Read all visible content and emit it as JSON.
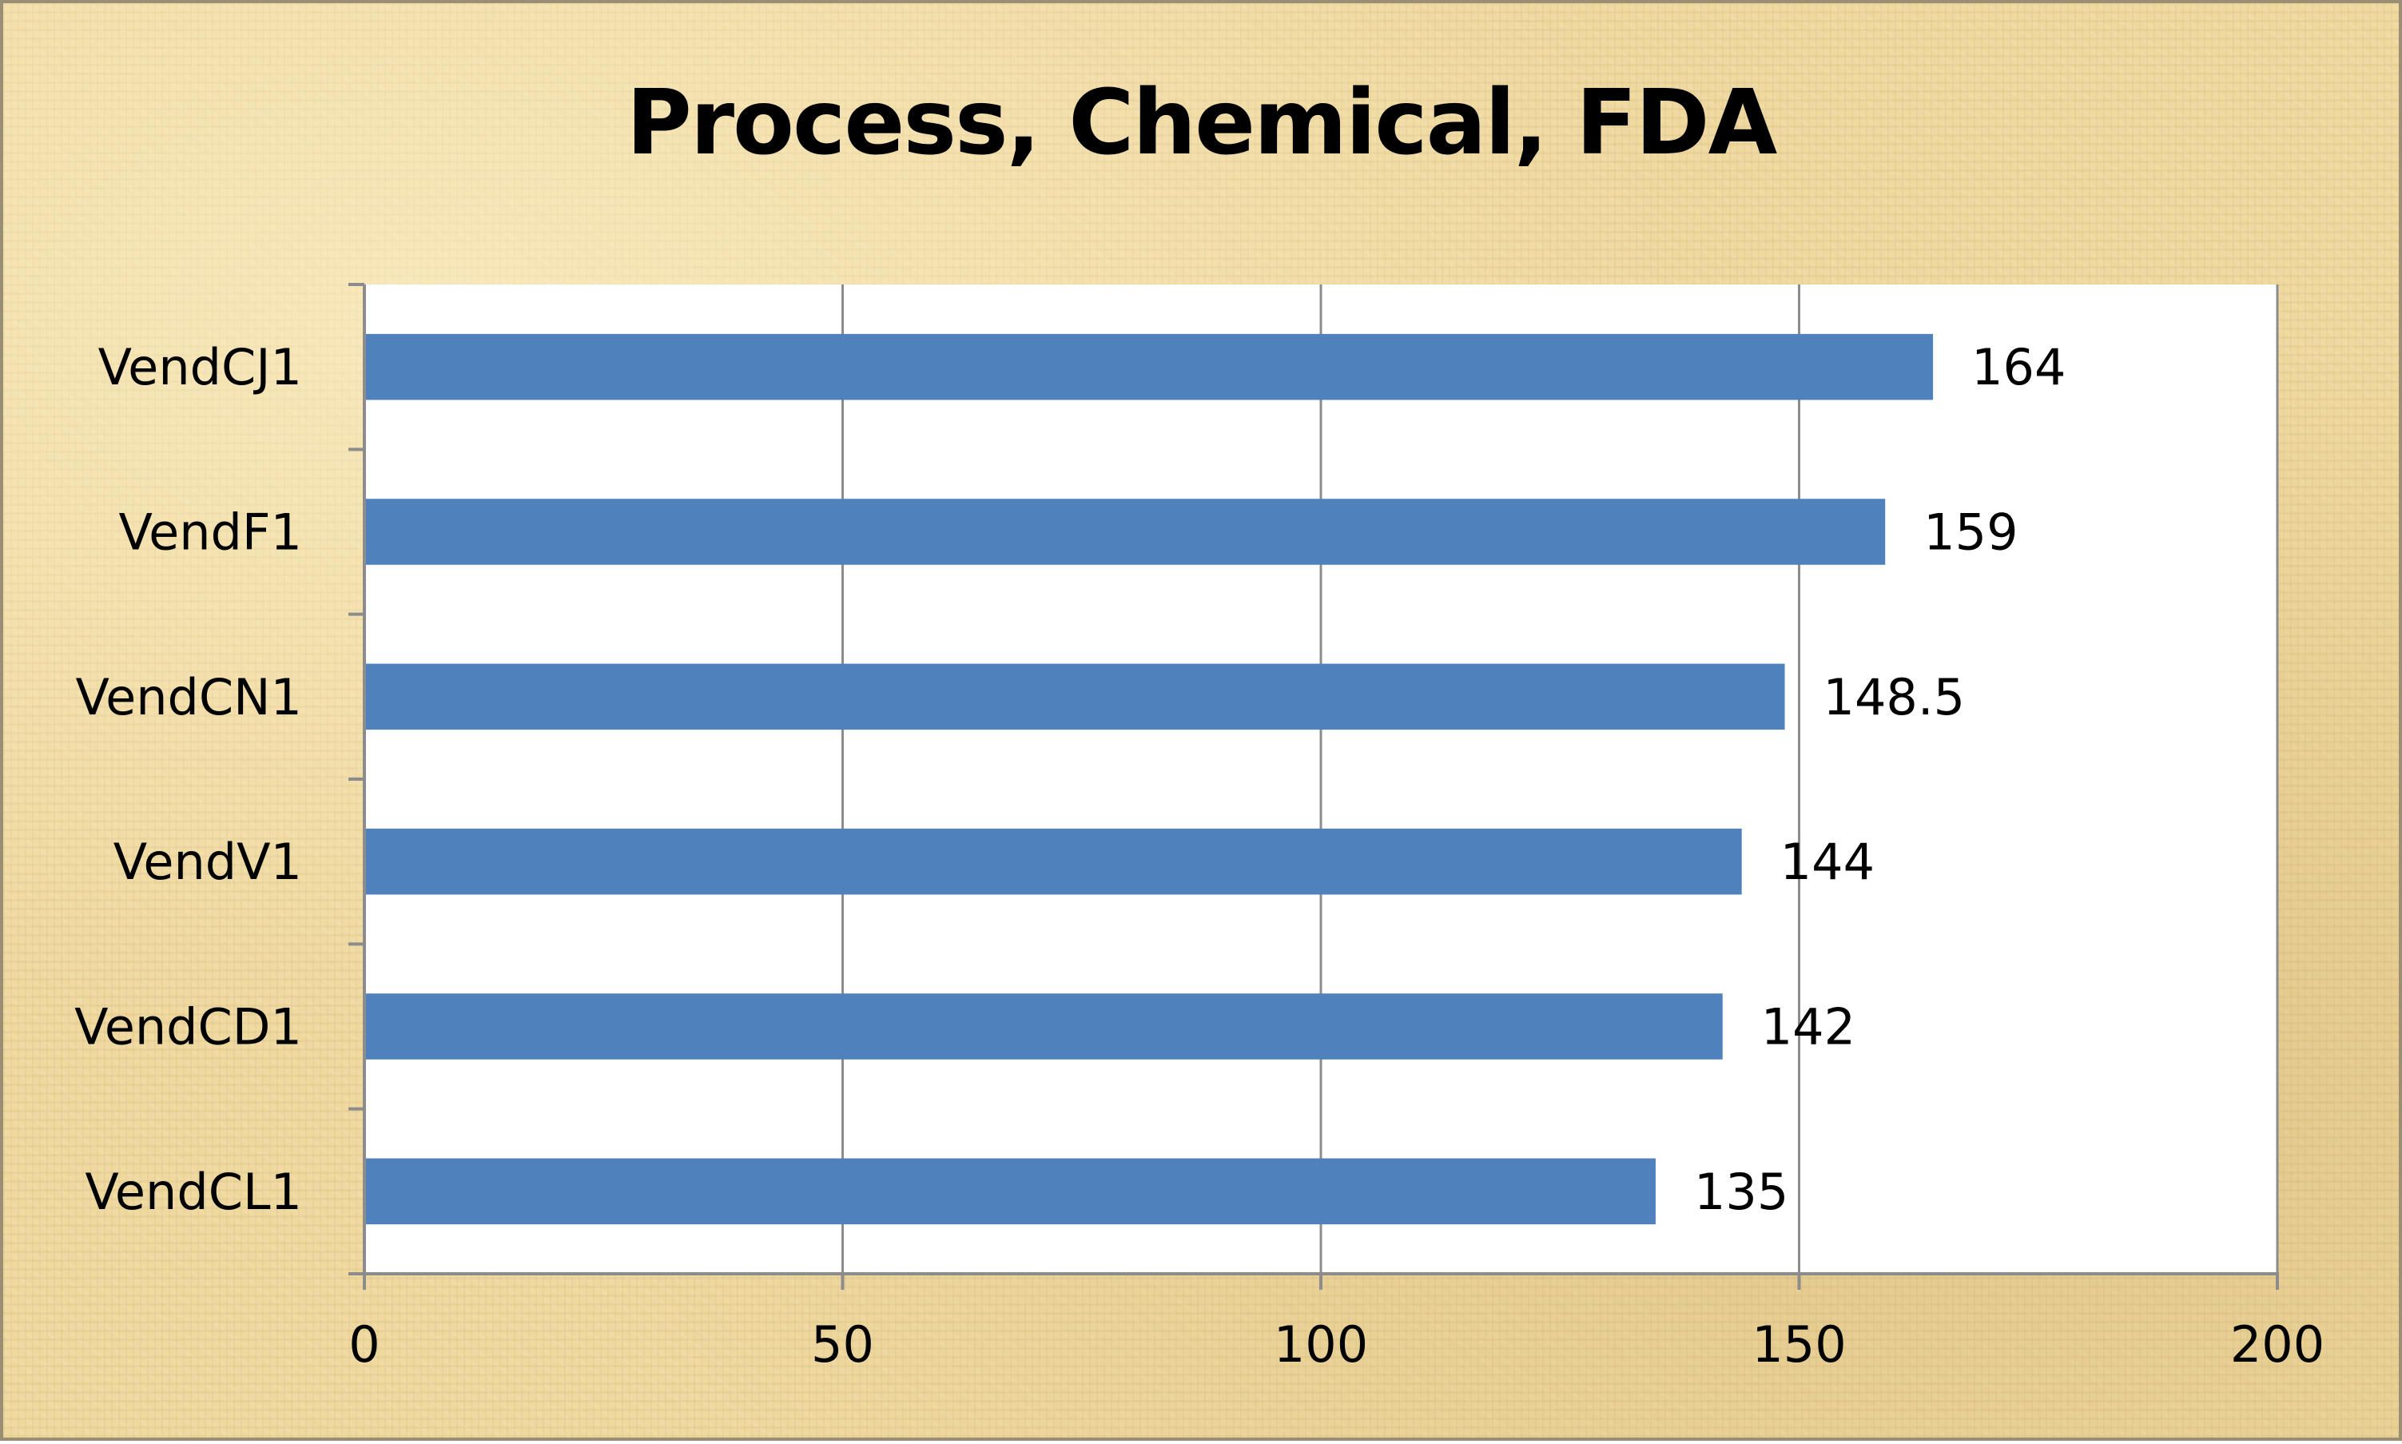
{
  "chart_data": {
    "type": "bar",
    "orientation": "horizontal",
    "title": "Process, Chemical, FDA",
    "xlabel": "",
    "ylabel": "",
    "categories": [
      "VendCJ1",
      "VendF1",
      "VendCN1",
      "VendV1",
      "VendCD1",
      "VendCL1"
    ],
    "values": [
      164,
      159,
      148.5,
      144,
      142,
      135
    ],
    "value_labels": [
      "164",
      "159",
      "148.5",
      "144",
      "142",
      "135"
    ],
    "xlim": [
      0,
      200
    ],
    "xticks": [
      0,
      50,
      100,
      150,
      200
    ],
    "xtick_labels": [
      "0",
      "50",
      "100",
      "150",
      "200"
    ],
    "grid": "vertical",
    "legend": "none",
    "colors": {
      "bar": "#4f81bd",
      "gridline": "#8c8c8c",
      "plot_background": "#ffffff"
    }
  }
}
